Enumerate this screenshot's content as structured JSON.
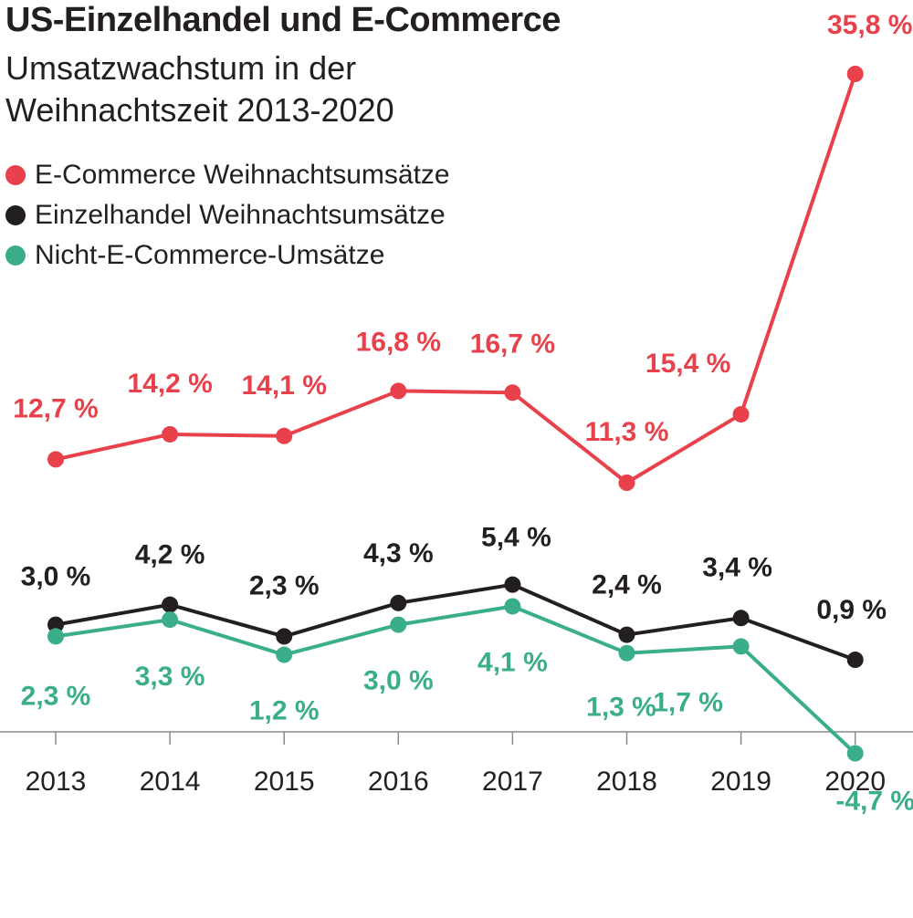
{
  "header": {
    "title": "US-Einzelhandel und E-Commerce",
    "subtitle": "Umsatzwachstum in der Weihnachtszeit 2013-2020"
  },
  "legend": {
    "items": [
      {
        "label": "E-Commerce Weihnachtsumsätze",
        "color": "#e8414b"
      },
      {
        "label": "Einzelhandel Weihnachtsumsätze",
        "color": "#231f20"
      },
      {
        "label": "Nicht-E-Commerce-Umsätze",
        "color": "#3aae8a"
      }
    ],
    "position": "top-left"
  },
  "chart_data": {
    "type": "line",
    "title": "US-Einzelhandel und E-Commerce",
    "subtitle": "Umsatzwachstum in der Weihnachtszeit 2013-2020",
    "xlabel": "",
    "ylabel": "",
    "categories": [
      "2013",
      "2014",
      "2015",
      "2016",
      "2017",
      "2018",
      "2019",
      "2020"
    ],
    "ylim": [
      -5,
      37
    ],
    "grid": false,
    "unit": "%",
    "series": [
      {
        "name": "E-Commerce Weihnachtsumsätze",
        "color": "#e8414b",
        "values": [
          12.7,
          14.2,
          14.1,
          16.8,
          16.7,
          11.3,
          15.4,
          35.8
        ],
        "labels": [
          "12,7 %",
          "14,2 %",
          "14,1 %",
          "16,8 %",
          "16,7 %",
          "11,3 %",
          "15,4 %",
          "35,8 %"
        ]
      },
      {
        "name": "Einzelhandel Weihnachtsumsätze",
        "color": "#231f20",
        "values": [
          3.0,
          4.2,
          2.3,
          4.3,
          5.4,
          2.4,
          3.4,
          0.9
        ],
        "labels": [
          "3,0 %",
          "4,2 %",
          "2,3 %",
          "4,3 %",
          "5,4 %",
          "2,4 %",
          "3,4 %",
          "0,9 %"
        ]
      },
      {
        "name": "Nicht-E-Commerce-Umsätze",
        "color": "#3aae8a",
        "values": [
          2.3,
          3.3,
          1.2,
          3.0,
          4.1,
          1.3,
          1.7,
          -4.7
        ],
        "labels": [
          "2,3 %",
          "3,3 %",
          "1,2 %",
          "3,0 %",
          "4,1 %",
          "1,3 %",
          "1,7 %",
          "-4,7 %"
        ]
      }
    ]
  }
}
